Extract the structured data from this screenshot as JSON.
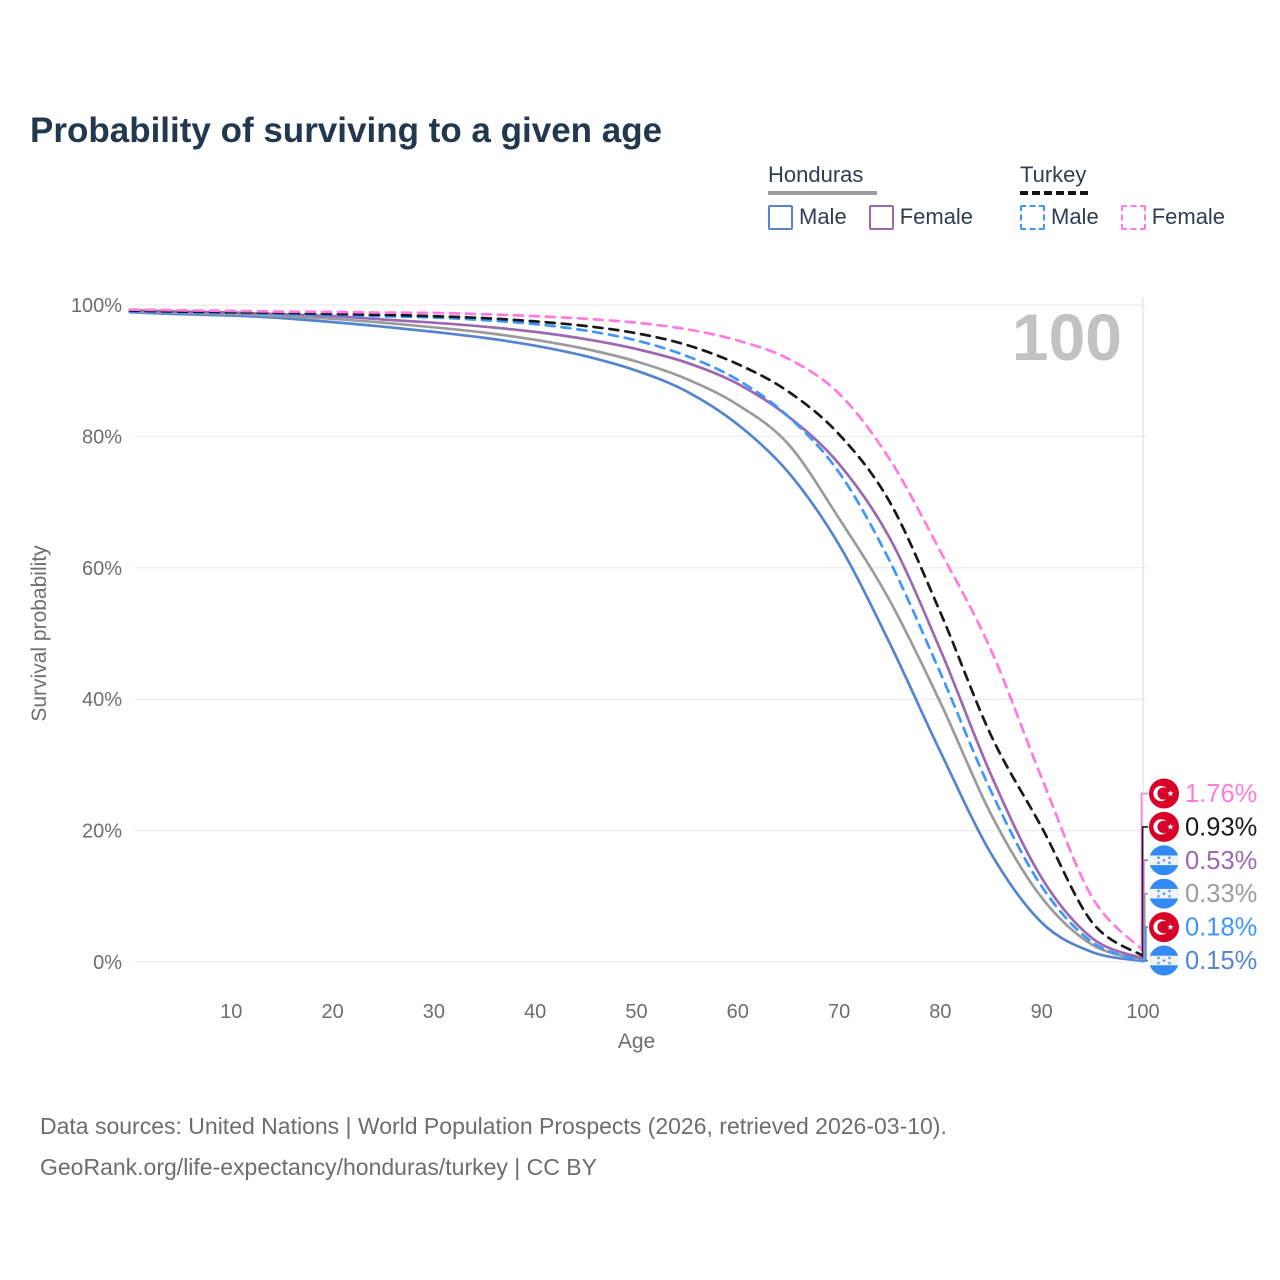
{
  "title": "Probability of surviving to a given age",
  "watermark_age": "100",
  "legend": {
    "groups": [
      {
        "name": "Honduras",
        "line_style": "solid",
        "underline_color": "#9E9E9E",
        "items": [
          {
            "label": "Male",
            "series": "Honduras Male"
          },
          {
            "label": "Female",
            "series": "Honduras Female"
          }
        ]
      },
      {
        "name": "Turkey",
        "line_style": "dashed",
        "underline_color": "#141414",
        "items": [
          {
            "label": "Male",
            "series": "Turkey Male"
          },
          {
            "label": "Female",
            "series": "Turkey Female"
          }
        ]
      }
    ]
  },
  "footer": {
    "line1": "Data sources: United Nations | World Population Prospects (2026, retrieved 2026-03-10).",
    "line2": "GeoRank.org/life-expectancy/honduras/turkey | CC BY"
  },
  "chart_data": {
    "type": "line",
    "title": "Probability of surviving to a given age",
    "xlabel": "Age",
    "ylabel": "Survival probability",
    "xlim": [
      0,
      100
    ],
    "ylim": [
      0,
      100
    ],
    "x_ticks": [
      10,
      20,
      30,
      40,
      50,
      60,
      70,
      80,
      90,
      100
    ],
    "y_ticks": [
      0,
      20,
      40,
      60,
      80,
      100
    ],
    "y_tick_suffix": "%",
    "grid": "horizontal",
    "legend_position": "top-right",
    "x": [
      0,
      5,
      10,
      15,
      20,
      25,
      30,
      35,
      40,
      45,
      50,
      55,
      60,
      65,
      70,
      75,
      80,
      85,
      90,
      95,
      100
    ],
    "series": [
      {
        "name": "Honduras Male",
        "country": "Honduras",
        "sex": "Male",
        "color": "#5585CE",
        "dash": "solid",
        "values": [
          98.9,
          98.6,
          98.4,
          98.0,
          97.4,
          96.7,
          95.9,
          95.0,
          93.8,
          92.2,
          90.0,
          86.8,
          81.8,
          74.5,
          63.5,
          48.5,
          32.0,
          16.5,
          6.0,
          1.5,
          0.15
        ],
        "end_label": "0.15%"
      },
      {
        "name": "Honduras",
        "country": "Honduras",
        "sex": "Both",
        "color": "#9B9B9B",
        "dash": "solid",
        "values": [
          99.0,
          98.8,
          98.6,
          98.3,
          97.9,
          97.3,
          96.6,
          95.8,
          94.7,
          93.3,
          91.4,
          88.7,
          84.8,
          78.8,
          67.5,
          55.0,
          39.5,
          22.5,
          9.8,
          2.6,
          0.33
        ],
        "end_label": "0.33%"
      },
      {
        "name": "Honduras Female",
        "country": "Honduras",
        "sex": "Female",
        "color": "#9C68B0",
        "dash": "solid",
        "values": [
          99.2,
          99.0,
          98.85,
          98.6,
          98.3,
          97.8,
          97.3,
          96.7,
          95.9,
          94.8,
          93.3,
          91.2,
          88.0,
          83.0,
          75.8,
          64.5,
          47.5,
          28.5,
          12.8,
          3.6,
          0.53
        ],
        "end_label": "0.53%"
      },
      {
        "name": "Turkey Male",
        "country": "Turkey",
        "sex": "Male",
        "color": "#3E97FF",
        "dash": "dashed",
        "values": [
          99.0,
          98.85,
          98.75,
          98.6,
          98.45,
          98.3,
          98.1,
          97.7,
          97.1,
          96.1,
          94.6,
          92.2,
          88.6,
          83.0,
          74.5,
          61.0,
          44.0,
          26.0,
          11.5,
          3.0,
          0.18
        ],
        "end_label": "0.18%"
      },
      {
        "name": "Turkey",
        "country": "Turkey",
        "sex": "Both",
        "color": "#1A1A1A",
        "dash": "dashed",
        "values": [
          99.15,
          99.0,
          98.9,
          98.8,
          98.65,
          98.5,
          98.3,
          98.0,
          97.5,
          96.8,
          95.7,
          93.9,
          91.0,
          86.8,
          80.3,
          70.0,
          53.2,
          34.5,
          20.5,
          6.0,
          0.93
        ],
        "end_label": "0.93%"
      },
      {
        "name": "Turkey Female",
        "country": "Turkey",
        "sex": "Female",
        "color": "#FF7BDE",
        "dash": "dashed",
        "values": [
          99.3,
          99.2,
          99.1,
          99.0,
          98.95,
          98.85,
          98.8,
          98.6,
          98.3,
          97.9,
          97.3,
          96.3,
          94.6,
          91.8,
          86.5,
          76.5,
          62.5,
          47.5,
          28.0,
          9.8,
          1.76
        ],
        "end_label": "1.76%"
      }
    ],
    "end_labels_top_to_bottom": [
      "1.76%",
      "0.93%",
      "0.53%",
      "0.33%",
      "0.18%",
      "0.15%"
    ]
  }
}
